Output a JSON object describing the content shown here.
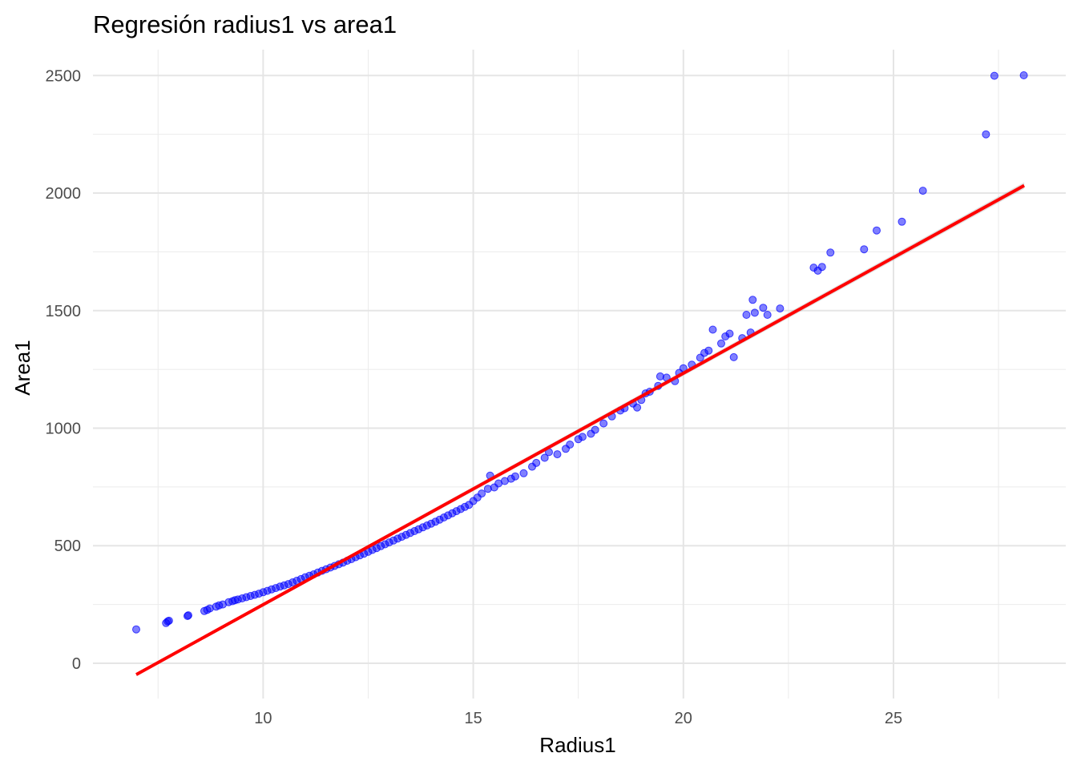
{
  "chart_data": {
    "type": "scatter",
    "title": "Regresión radius1 vs area1",
    "xlabel": "Radius1",
    "ylabel": "Area1",
    "xlim": [
      5.95,
      29.1
    ],
    "ylim": [
      -150,
      2610
    ],
    "x_ticks": [
      10,
      15,
      20,
      25
    ],
    "y_ticks": [
      0,
      500,
      1000,
      1500,
      2000,
      2500
    ],
    "grid": true,
    "legend": "none",
    "point_color": "#0000ff",
    "line_color": "#ff0000",
    "series": [
      {
        "type": "scatter",
        "points": [
          [
            6.98,
            144
          ],
          [
            7.69,
            171
          ],
          [
            7.73,
            178
          ],
          [
            7.76,
            181
          ],
          [
            8.2,
            201
          ],
          [
            8.22,
            204
          ],
          [
            8.6,
            222
          ],
          [
            8.67,
            227
          ],
          [
            8.73,
            233
          ],
          [
            8.88,
            241
          ],
          [
            8.95,
            246
          ],
          [
            9.04,
            250
          ],
          [
            9.18,
            260
          ],
          [
            9.27,
            264
          ],
          [
            9.33,
            268
          ],
          [
            9.4,
            271
          ],
          [
            9.5,
            276
          ],
          [
            9.6,
            281
          ],
          [
            9.7,
            286
          ],
          [
            9.8,
            291
          ],
          [
            9.9,
            296
          ],
          [
            10.0,
            302
          ],
          [
            10.1,
            308
          ],
          [
            10.2,
            314
          ],
          [
            10.3,
            320
          ],
          [
            10.4,
            326
          ],
          [
            10.5,
            331
          ],
          [
            10.6,
            337
          ],
          [
            10.7,
            344
          ],
          [
            10.8,
            351
          ],
          [
            10.9,
            358
          ],
          [
            11.0,
            366
          ],
          [
            11.1,
            372
          ],
          [
            11.2,
            378
          ],
          [
            11.3,
            386
          ],
          [
            11.4,
            393
          ],
          [
            11.5,
            400
          ],
          [
            11.6,
            407
          ],
          [
            11.7,
            414
          ],
          [
            11.8,
            421
          ],
          [
            11.9,
            428
          ],
          [
            12.0,
            436
          ],
          [
            12.1,
            443
          ],
          [
            12.2,
            451
          ],
          [
            12.3,
            459
          ],
          [
            12.4,
            466
          ],
          [
            12.5,
            474
          ],
          [
            12.6,
            482
          ],
          [
            12.7,
            490
          ],
          [
            12.8,
            498
          ],
          [
            12.9,
            506
          ],
          [
            13.0,
            514
          ],
          [
            13.1,
            522
          ],
          [
            13.2,
            530
          ],
          [
            13.3,
            538
          ],
          [
            13.4,
            546
          ],
          [
            13.5,
            554
          ],
          [
            13.6,
            562
          ],
          [
            13.7,
            570
          ],
          [
            13.8,
            578
          ],
          [
            13.9,
            586
          ],
          [
            14.0,
            594
          ],
          [
            14.1,
            602
          ],
          [
            14.2,
            611
          ],
          [
            14.3,
            620
          ],
          [
            14.4,
            629
          ],
          [
            14.5,
            638
          ],
          [
            14.6,
            647
          ],
          [
            14.7,
            656
          ],
          [
            14.8,
            665
          ],
          [
            14.9,
            674
          ],
          [
            15.0,
            690
          ],
          [
            15.1,
            705
          ],
          [
            15.2,
            722
          ],
          [
            15.35,
            742
          ],
          [
            15.4,
            798
          ],
          [
            15.5,
            748
          ],
          [
            15.6,
            765
          ],
          [
            15.75,
            775
          ],
          [
            15.9,
            785
          ],
          [
            16.0,
            795
          ],
          [
            16.2,
            808
          ],
          [
            16.4,
            836
          ],
          [
            16.5,
            852
          ],
          [
            16.7,
            874
          ],
          [
            16.8,
            898
          ],
          [
            17.0,
            889
          ],
          [
            17.2,
            912
          ],
          [
            17.3,
            930
          ],
          [
            17.5,
            953
          ],
          [
            17.6,
            963
          ],
          [
            17.8,
            976
          ],
          [
            17.9,
            993
          ],
          [
            18.1,
            1020
          ],
          [
            18.3,
            1050
          ],
          [
            18.5,
            1075
          ],
          [
            18.6,
            1085
          ],
          [
            18.8,
            1105
          ],
          [
            18.9,
            1088
          ],
          [
            19.0,
            1120
          ],
          [
            19.1,
            1148
          ],
          [
            19.2,
            1155
          ],
          [
            19.4,
            1180
          ],
          [
            19.45,
            1220
          ],
          [
            19.6,
            1215
          ],
          [
            19.8,
            1200
          ],
          [
            19.9,
            1235
          ],
          [
            20.0,
            1255
          ],
          [
            20.2,
            1270
          ],
          [
            20.4,
            1300
          ],
          [
            20.5,
            1320
          ],
          [
            20.6,
            1330
          ],
          [
            20.7,
            1419
          ],
          [
            20.9,
            1360
          ],
          [
            21.0,
            1390
          ],
          [
            21.1,
            1402
          ],
          [
            21.2,
            1302
          ],
          [
            21.4,
            1383
          ],
          [
            21.5,
            1482
          ],
          [
            21.6,
            1407
          ],
          [
            21.65,
            1546
          ],
          [
            21.7,
            1491
          ],
          [
            21.9,
            1512
          ],
          [
            22.0,
            1482
          ],
          [
            22.3,
            1509
          ],
          [
            23.1,
            1683
          ],
          [
            23.2,
            1670
          ],
          [
            23.3,
            1686
          ],
          [
            23.5,
            1747
          ],
          [
            24.3,
            1761
          ],
          [
            24.6,
            1841
          ],
          [
            25.2,
            1878
          ],
          [
            25.7,
            2010
          ],
          [
            27.2,
            2250
          ],
          [
            27.4,
            2499
          ],
          [
            28.1,
            2501
          ]
        ]
      },
      {
        "type": "line",
        "points": [
          [
            6.98,
            -48
          ],
          [
            28.11,
            2032
          ]
        ]
      }
    ]
  }
}
